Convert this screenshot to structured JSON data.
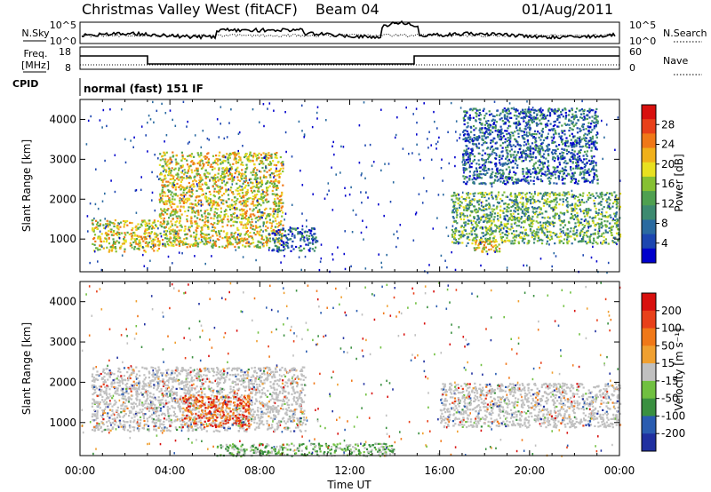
{
  "header": {
    "station": "Christmas Valley West (fitACF)",
    "beam": "Beam 04",
    "date": "01/Aug/2011"
  },
  "strips": {
    "nsky_label": "N.Sky",
    "nsky_ticks": [
      "10^5",
      "10^0"
    ],
    "nsearch_label": "N.Search",
    "nsearch_ticks": [
      "10^5",
      "10^0"
    ],
    "freq_label": "Freq.",
    "freq_unit": "[MHz]",
    "freq_ticks": [
      "18",
      "8"
    ],
    "nave_label": "Nave",
    "nave_ticks": [
      "60",
      "0"
    ],
    "cpid_label": "CPID",
    "cpid_text": "normal (fast) 151 IF"
  },
  "chart_data": [
    {
      "type": "heatmap",
      "name": "power",
      "ylabel": "Slant Range [km]",
      "xlabel": "Time UT",
      "x_ticks": [
        "00:00",
        "04:00",
        "08:00",
        "12:00",
        "16:00",
        "20:00",
        "00:00"
      ],
      "y_ticks": [
        "1000",
        "2000",
        "3000",
        "4000"
      ],
      "xlim": [
        0,
        24
      ],
      "ylim": [
        180,
        4500
      ],
      "colorbar": {
        "label": "Power [dB]",
        "ticks": [
          "4",
          "8",
          "12",
          "16",
          "20",
          "24",
          "28"
        ],
        "colors": [
          "#0000cc",
          "#1c46b0",
          "#2a6aa0",
          "#3d8a70",
          "#4fa050",
          "#86c032",
          "#e8e020",
          "#f0b01a",
          "#f07818",
          "#e8401a",
          "#d8100e"
        ]
      },
      "features": [
        {
          "t": [
            0.5,
            3.5
          ],
          "range": [
            700,
            1500
          ],
          "level": "high"
        },
        {
          "t": [
            3.5,
            9.0
          ],
          "range": [
            800,
            3200
          ],
          "level": "high"
        },
        {
          "t": [
            8.5,
            10.5
          ],
          "range": [
            700,
            1300
          ],
          "level": "low"
        },
        {
          "t": [
            16.5,
            24.0
          ],
          "range": [
            900,
            2200
          ],
          "level": "medium"
        },
        {
          "t": [
            17.5,
            19.0
          ],
          "range": [
            700,
            1000
          ],
          "level": "high"
        },
        {
          "t": [
            17.0,
            23.0
          ],
          "range": [
            2400,
            4300
          ],
          "level": "low"
        }
      ]
    },
    {
      "type": "heatmap",
      "name": "velocity",
      "ylabel": "Slant Range [km]",
      "xlabel": "Time UT",
      "x_ticks": [
        "00:00",
        "04:00",
        "08:00",
        "12:00",
        "16:00",
        "20:00",
        "00:00"
      ],
      "y_ticks": [
        "1000",
        "2000",
        "3000",
        "4000"
      ],
      "xlim": [
        0,
        24
      ],
      "ylim": [
        180,
        4500
      ],
      "colorbar": {
        "label": "Velocity [m s⁻¹]",
        "ticks": [
          "200",
          "100",
          "50",
          "15",
          "-15",
          "-50",
          "-100",
          "-200"
        ],
        "colors": [
          "#2030a0",
          "#2a5cb0",
          "#3a9040",
          "#70c040",
          "#c0c0c0",
          "#f0a030",
          "#f07818",
          "#e8401a",
          "#d8100e"
        ]
      },
      "features": [
        {
          "t": [
            0.5,
            10.0
          ],
          "range": [
            800,
            2400
          ],
          "level": "ground"
        },
        {
          "t": [
            4.5,
            7.5
          ],
          "range": [
            900,
            1700
          ],
          "level": "negative"
        },
        {
          "t": [
            16.0,
            24.0
          ],
          "range": [
            900,
            2000
          ],
          "level": "ground"
        },
        {
          "t": [
            6.0,
            14.0
          ],
          "range": [
            180,
            500
          ],
          "level": "positive"
        }
      ]
    }
  ]
}
